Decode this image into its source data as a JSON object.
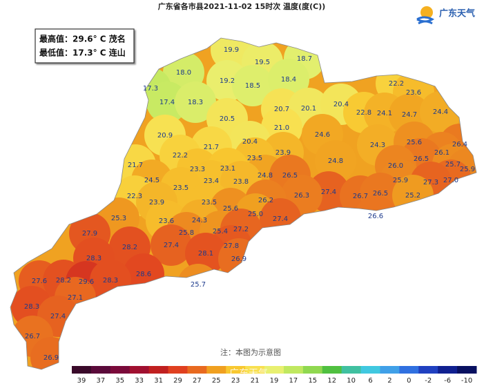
{
  "header": {
    "title": "广东省各市县2021-11-02 15时次 温度(度(C))",
    "logo": "广东天气"
  },
  "info": {
    "max": "最高值：29.6° C 茂名",
    "min": "最低值：17.3° C 连山"
  },
  "stations": [
    "19.9",
    "19.5",
    "18.7",
    "18.0",
    "19.2",
    "18.5",
    "18.4",
    "17.3",
    "17.4",
    "18.3",
    "20.7",
    "20.1",
    "20.4",
    "22.2",
    "23.6",
    "20.5",
    "21.0",
    "22.8",
    "24.1",
    "24.7",
    "24.4",
    "20.9",
    "24.6",
    "20.4",
    "24.3",
    "25.6",
    "26.4",
    "21.7",
    "23.9",
    "26.1",
    "22.2",
    "26.5",
    "25.7",
    "23.5",
    "24.8",
    "21.7",
    "23.3",
    "23.1",
    "26.0",
    "25.9",
    "24.5",
    "24.8",
    "26.5",
    "23.4",
    "23.8",
    "27.0",
    "25.9",
    "27.3",
    "23.5",
    "27.4",
    "26.3",
    "26.7",
    "26.5",
    "25.2",
    "22.3",
    "26.2",
    "23.9",
    "23.5",
    "25.6",
    "25.0",
    "26.6",
    "25.3",
    "23.6",
    "24.3",
    "27.4",
    "25.8",
    "25.4",
    "27.2",
    "27.9",
    "28.2",
    "27.4",
    "27.8",
    "28.1",
    "26.9",
    "28.3",
    "28.6",
    "27.6",
    "28.2",
    "29.6",
    "28.3",
    "25.7",
    "27.1",
    "28.3",
    "27.4",
    "26.7",
    "26.9"
  ],
  "legend": {
    "ticks": [
      39,
      37,
      35,
      33,
      31,
      29,
      27,
      25,
      23,
      21,
      19,
      17,
      15,
      12,
      10,
      6,
      2,
      0,
      -2,
      -6,
      -10
    ],
    "colors": [
      "#3a0a2a",
      "#5a0a3a",
      "#7a0a3a",
      "#a01030",
      "#c02020",
      "#e04020",
      "#e86a20",
      "#f0a020",
      "#f8c830",
      "#f8e050",
      "#e8f070",
      "#c0e860",
      "#90d850",
      "#50c040",
      "#40c0a0",
      "#40c8e0",
      "#40a0e8",
      "#3070e0",
      "#2040c0",
      "#102090",
      "#081060"
    ]
  },
  "note": "注：本图为示意图",
  "watermark": "广东天气"
}
